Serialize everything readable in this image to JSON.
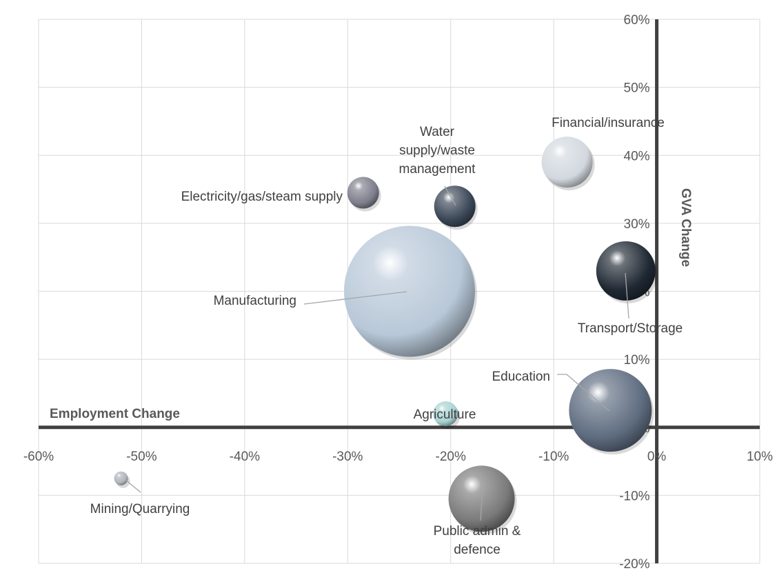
{
  "chart_data": {
    "type": "bubble",
    "xlabel": "Employment Change",
    "ylabel": "GVA Change",
    "xlim": [
      -0.6,
      0.1
    ],
    "ylim": [
      -0.2,
      0.6
    ],
    "x_ticks": [
      -0.6,
      -0.5,
      -0.4,
      -0.3,
      -0.2,
      -0.1,
      0.0,
      0.1
    ],
    "y_ticks": [
      -0.2,
      -0.1,
      0.0,
      0.1,
      0.2,
      0.3,
      0.4,
      0.5,
      0.6
    ],
    "x_tick_labels": [
      "-60%",
      "-50%",
      "-40%",
      "-30%",
      "-20%",
      "-10%",
      "0%",
      "10%"
    ],
    "y_tick_labels": [
      "-20%",
      "-10%",
      "0%",
      "10%",
      "20%",
      "30%",
      "40%",
      "50%",
      "60%"
    ],
    "grid": true,
    "points": [
      {
        "label": "Manufacturing",
        "label_lines": [
          "Manufacturing"
        ],
        "x": -0.24,
        "y": 0.2,
        "size": 95,
        "color": "#b8c8d8"
      },
      {
        "label": "Education",
        "label_lines": [
          "Education"
        ],
        "x": -0.045,
        "y": 0.025,
        "size": 60,
        "color": "#5e6c80"
      },
      {
        "label": "Transport/Storage",
        "label_lines": [
          "Transport/Storage"
        ],
        "x": -0.03,
        "y": 0.23,
        "size": 43,
        "color": "#1f2833"
      },
      {
        "label": "Public admin & defence",
        "label_lines": [
          "Public admin &",
          "defence"
        ],
        "x": -0.17,
        "y": -0.105,
        "size": 48,
        "color": "#7a7a7a"
      },
      {
        "label": "Financial/insurance",
        "label_lines": [
          "Financial/insurance"
        ],
        "x": -0.087,
        "y": 0.39,
        "size": 37,
        "color": "#d2d8de"
      },
      {
        "label": "Water supply/waste management",
        "label_lines": [
          "Water",
          "supply/waste",
          "management"
        ],
        "x": -0.196,
        "y": 0.325,
        "size": 30,
        "color": "#3a4656"
      },
      {
        "label": "Electricity/gas/steam supply",
        "label_lines": [
          "Electricity/gas/steam supply"
        ],
        "x": -0.285,
        "y": 0.345,
        "size": 23,
        "color": "#7e7e8c"
      },
      {
        "label": "Agriculture",
        "label_lines": [
          "Agriculture"
        ],
        "x": -0.205,
        "y": 0.02,
        "size": 18,
        "color": "#a9d3d3"
      },
      {
        "label": "Mining/Quarrying",
        "label_lines": [
          "Mining/Quarrying"
        ],
        "x": -0.52,
        "y": -0.075,
        "size": 10,
        "color": "#aeb4ba"
      }
    ]
  }
}
